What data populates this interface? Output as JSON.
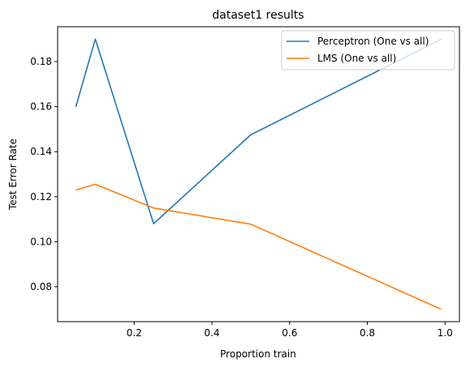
{
  "chart_data": {
    "type": "line",
    "title": "dataset1 results",
    "xlabel": "Proportion train",
    "ylabel": "Test Error Rate",
    "xlim": [
      0.003,
      1.037
    ],
    "ylim": [
      0.0645,
      0.1955
    ],
    "xticks": [
      0.2,
      0.4,
      0.6,
      0.8,
      1.0
    ],
    "xtick_labels": [
      "0.2",
      "0.4",
      "0.6",
      "0.8",
      "1.0"
    ],
    "yticks": [
      0.08,
      0.1,
      0.12,
      0.14,
      0.16,
      0.18
    ],
    "ytick_labels": [
      "0.08",
      "0.10",
      "0.12",
      "0.14",
      "0.16",
      "0.18"
    ],
    "grid": false,
    "legend_position": "top-right",
    "x": [
      0.05,
      0.1,
      0.25,
      0.5,
      0.99
    ],
    "series": [
      {
        "name": "Perceptron (One vs all)",
        "color": "#1f77b4",
        "values": [
          0.16,
          0.19,
          0.108,
          0.1475,
          0.19
        ]
      },
      {
        "name": "LMS (One vs all)",
        "color": "#ff7f0e",
        "values": [
          0.123,
          0.1255,
          0.115,
          0.1078,
          0.07
        ]
      }
    ]
  }
}
